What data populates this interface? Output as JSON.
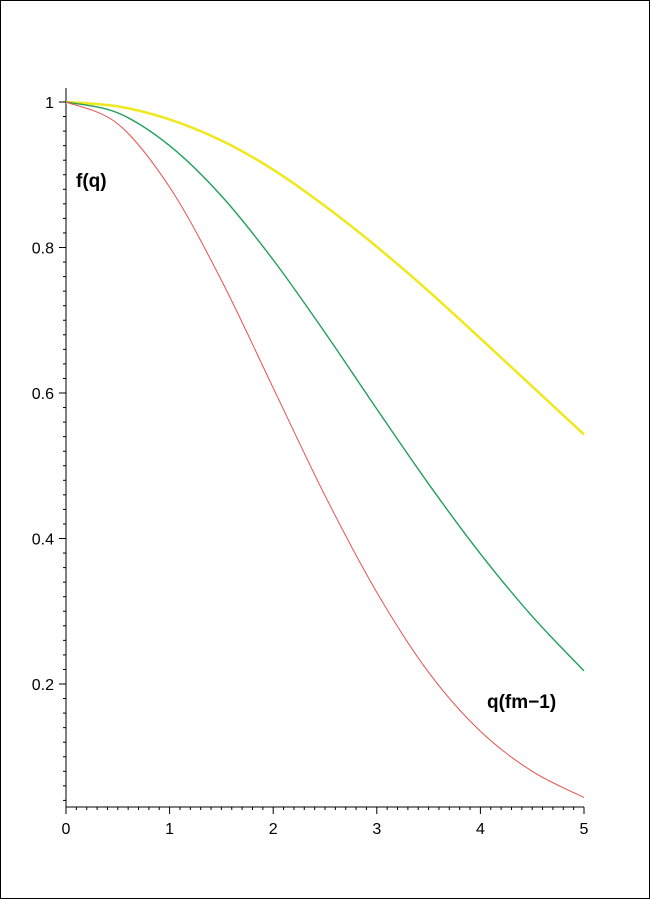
{
  "chart_data": {
    "type": "line",
    "title": "",
    "xlabel": "q(fm−1)",
    "ylabel": "f(q)",
    "xlim": [
      0,
      5
    ],
    "ylim": [
      0.03,
      1.02
    ],
    "x_ticks": [
      "0",
      "1",
      "2",
      "3",
      "4",
      "5"
    ],
    "y_ticks": [
      "0.2",
      "0.4",
      "0.6",
      "0.8",
      "1"
    ],
    "grid": false,
    "series": [
      {
        "color": "#f0e81c",
        "x": [
          0,
          0.5,
          1,
          1.5,
          2,
          2.5,
          3,
          3.5,
          4,
          4.5,
          5
        ],
        "y": [
          1.0,
          0.994,
          0.976,
          0.947,
          0.907,
          0.857,
          0.801,
          0.74,
          0.675,
          0.609,
          0.543
        ]
      },
      {
        "color": "#1fa05a",
        "x": [
          0,
          0.5,
          1,
          1.5,
          2,
          2.5,
          3,
          3.5,
          4,
          4.5,
          5
        ],
        "y": [
          1.0,
          0.985,
          0.94,
          0.871,
          0.783,
          0.683,
          0.578,
          0.475,
          0.379,
          0.293,
          0.218
        ]
      },
      {
        "color": "#e8504f",
        "x": [
          0,
          0.5,
          1,
          1.5,
          2,
          2.5,
          3,
          3.5,
          4,
          4.5,
          5
        ],
        "y": [
          1.0,
          0.97,
          0.883,
          0.755,
          0.607,
          0.459,
          0.326,
          0.216,
          0.135,
          0.08,
          0.044
        ]
      }
    ]
  }
}
